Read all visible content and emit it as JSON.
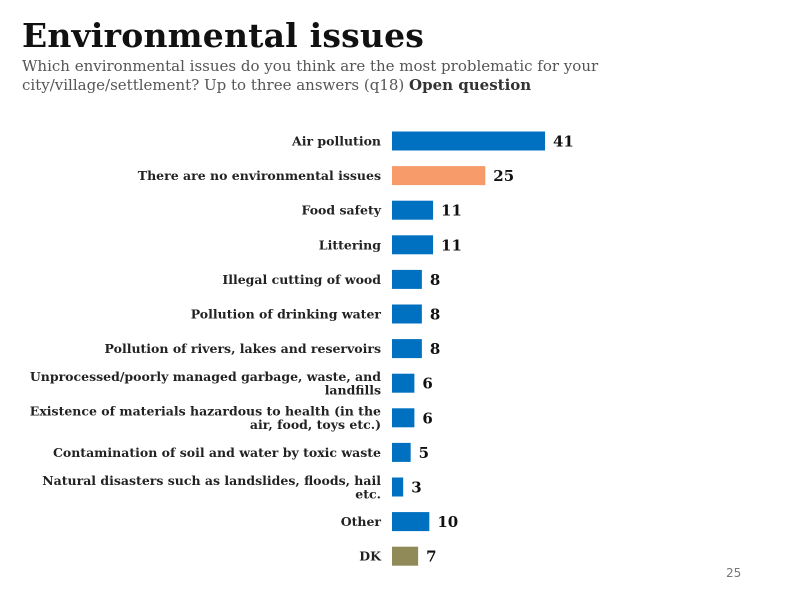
{
  "title": "Environmental issues",
  "subtitle": "Which environmental issues do you think are the most problematic for your city/village/settlement? Up to three answers (q18)",
  "subtitle_emphasis": "Open question",
  "page_number": "25",
  "colors": {
    "default": "#0070C0",
    "none": "#F79B6A",
    "dk": "#8F8A57"
  },
  "chart_data": {
    "type": "bar",
    "orientation": "horizontal",
    "title": "Environmental issues",
    "categories": [
      "Air pollution",
      "There are no environmental issues",
      "Food safety",
      "Littering",
      "Illegal cutting of wood",
      "Pollution of drinking water",
      "Pollution of rivers, lakes and reservoirs",
      "Unprocessed/poorly managed garbage, waste, and landfills",
      "Existence of materials hazardous to health (in the air, food, toys etc.)",
      "Contamination of soil and water by toxic waste",
      "Natural disasters such as landslides, floods, hail etc.",
      "Other",
      "DK"
    ],
    "values": [
      41,
      25,
      11,
      11,
      8,
      8,
      8,
      6,
      6,
      5,
      3,
      10,
      7
    ],
    "bar_colors": [
      "#0070C0",
      "#F79B6A",
      "#0070C0",
      "#0070C0",
      "#0070C0",
      "#0070C0",
      "#0070C0",
      "#0070C0",
      "#0070C0",
      "#0070C0",
      "#0070C0",
      "#0070C0",
      "#8F8A57"
    ],
    "data_labels": true,
    "xlim": [
      0,
      41
    ],
    "grid": false,
    "legend": "none"
  }
}
